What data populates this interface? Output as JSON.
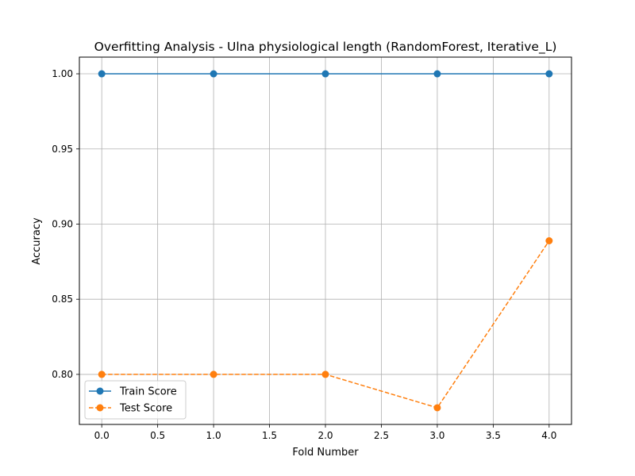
{
  "chart_data": {
    "type": "line",
    "title": "Overfitting Analysis - Ulna physiological length (RandomForest, Iterative_L)",
    "xlabel": "Fold Number",
    "ylabel": "Accuracy",
    "x": [
      0,
      1,
      2,
      3,
      4
    ],
    "xlim": [
      -0.2,
      4.2
    ],
    "ylim": [
      0.7667,
      1.0111
    ],
    "xticks": [
      0.0,
      0.5,
      1.0,
      1.5,
      2.0,
      2.5,
      3.0,
      3.5,
      4.0
    ],
    "xtick_labels": [
      "0.0",
      "0.5",
      "1.0",
      "1.5",
      "2.0",
      "2.5",
      "3.0",
      "3.5",
      "4.0"
    ],
    "yticks": [
      0.8,
      0.85,
      0.9,
      0.95,
      1.0
    ],
    "ytick_labels": [
      "0.80",
      "0.85",
      "0.90",
      "0.95",
      "1.00"
    ],
    "grid": true,
    "legend_position": "lower-left",
    "series": [
      {
        "name": "Train Score",
        "values": [
          1.0,
          1.0,
          1.0,
          1.0,
          1.0
        ],
        "color": "#1f77b4",
        "linestyle": "solid",
        "marker": "circle"
      },
      {
        "name": "Test Score",
        "values": [
          0.8,
          0.8,
          0.8,
          0.7778,
          0.8889
        ],
        "color": "#ff7f0e",
        "linestyle": "dashed",
        "marker": "circle"
      }
    ]
  }
}
